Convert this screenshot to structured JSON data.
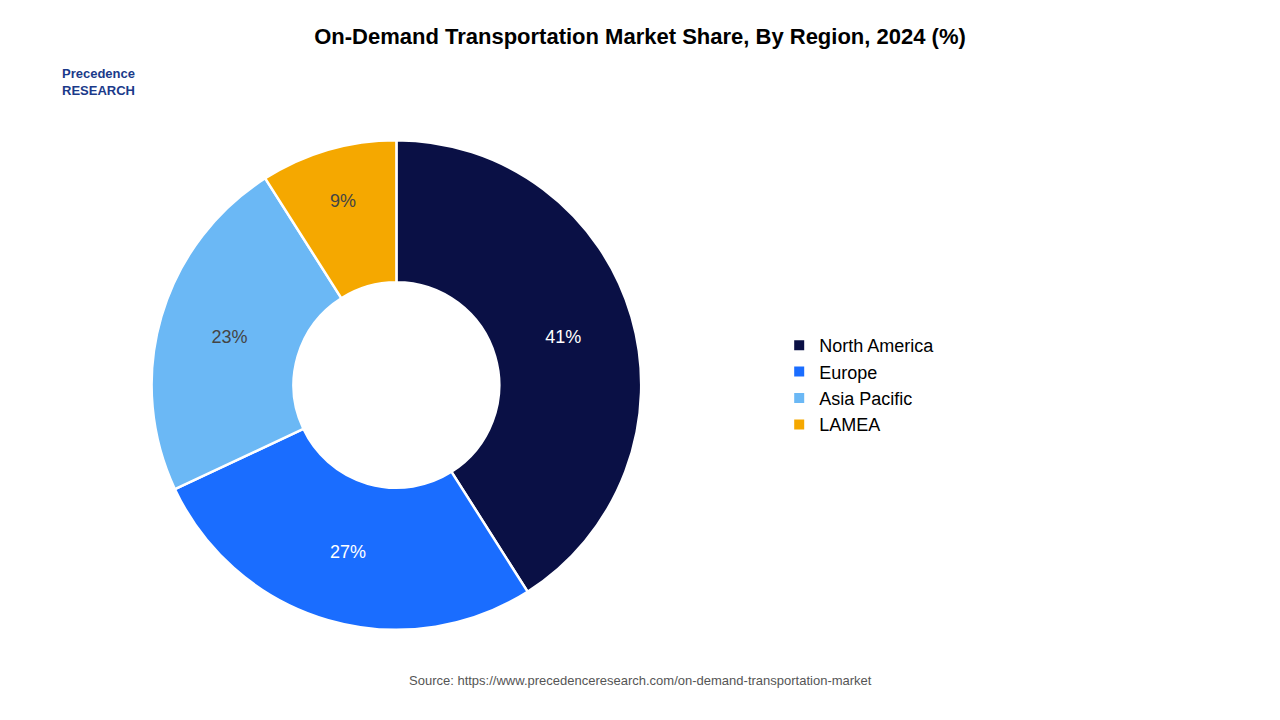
{
  "chart_data": {
    "type": "pie",
    "title": "On-Demand Transportation Market Share, By Region, 2024 (%)",
    "categories": [
      "North America",
      "Europe",
      "Asia Pacific",
      "LAMEA"
    ],
    "values": [
      41,
      27,
      23,
      9
    ],
    "value_labels": [
      "41%",
      "27%",
      "23%",
      "9%"
    ],
    "colors": [
      "#0a1045",
      "#1a6dff",
      "#6bb8f5",
      "#f5a800"
    ],
    "data_labels": true,
    "legend": "right",
    "annotations": [
      "Precedence\nRESEARCH",
      "Source: https://www.precedenceresearch.com/on-demand-transportation-market"
    ]
  }
}
